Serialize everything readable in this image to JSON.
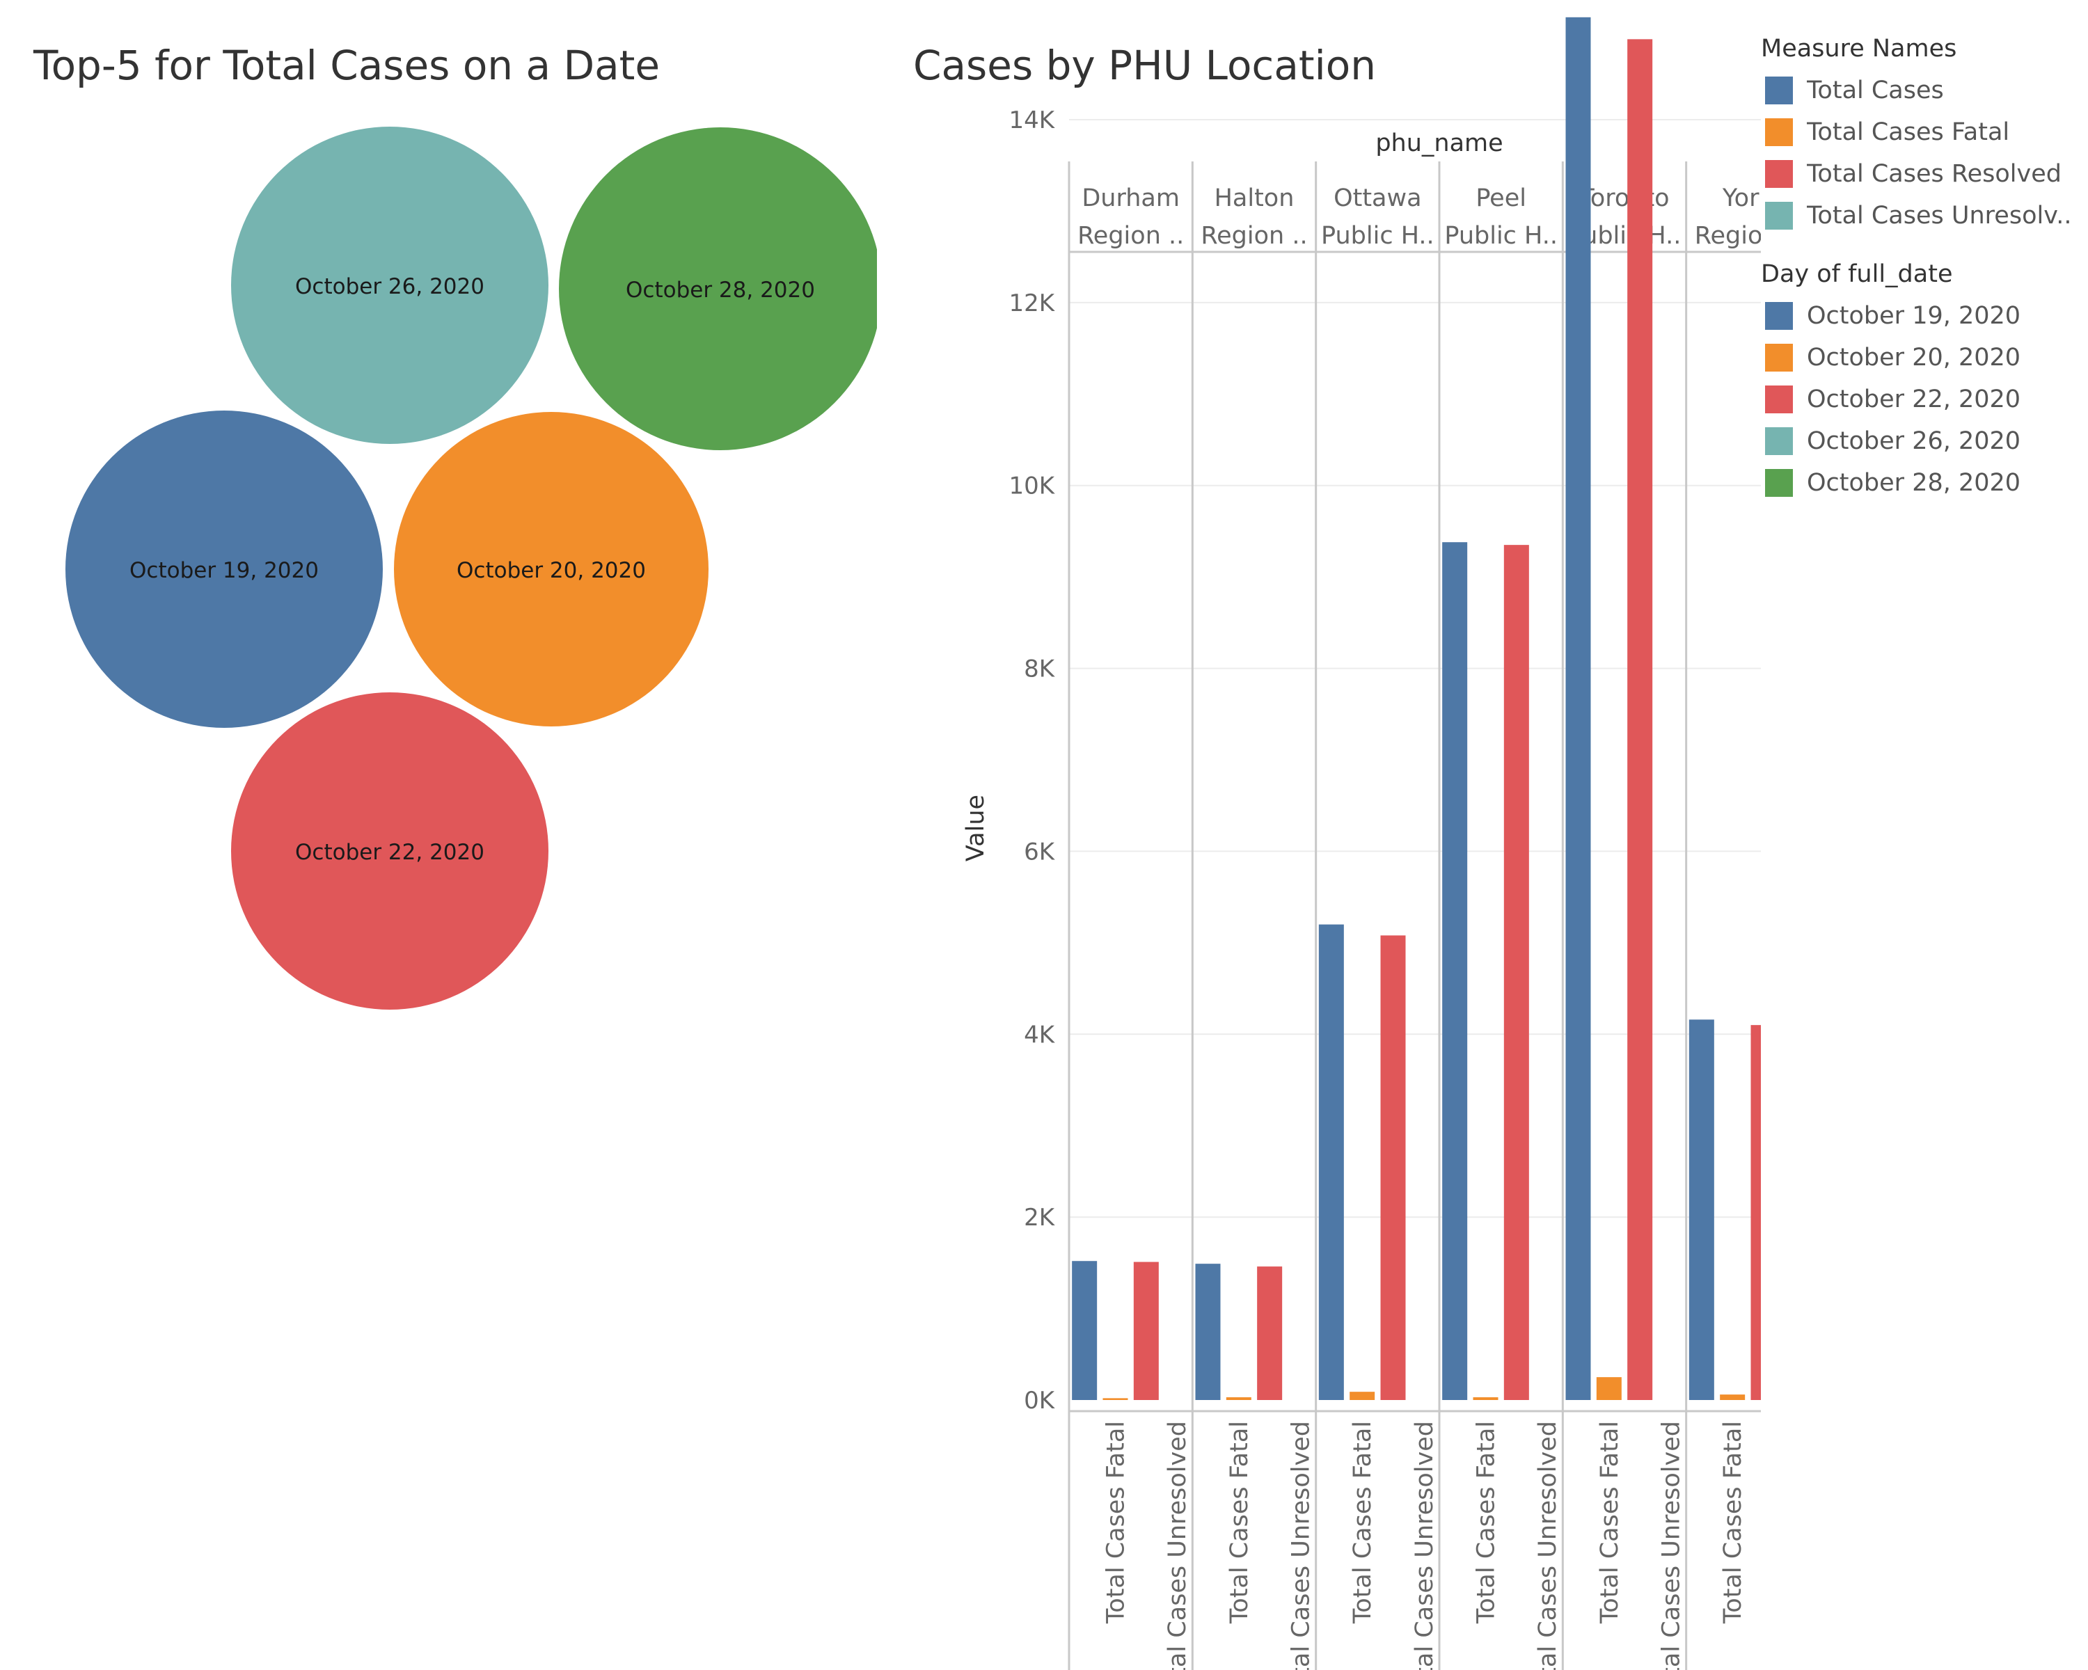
{
  "chart_data": [
    {
      "type": "bubble",
      "title": "Top-5 for Total Cases on a Date",
      "bubbles": [
        {
          "label": "October 26, 2020",
          "color": "#76b4b0"
        },
        {
          "label": "October 28, 2020",
          "color": "#59a14f"
        },
        {
          "label": "October 19, 2020",
          "color": "#4e78a6"
        },
        {
          "label": "October 20, 2020",
          "color": "#f28e2b"
        },
        {
          "label": "October 22, 2020",
          "color": "#e05759"
        }
      ]
    },
    {
      "type": "bar",
      "title": "Cases by PHU Location",
      "column_header": "phu_name",
      "ylabel": "Value",
      "ylim": [
        0,
        16000
      ],
      "yticks": [
        0,
        2000,
        4000,
        6000,
        8000,
        10000,
        12000,
        14000
      ],
      "ytick_labels": [
        "0K",
        "2K",
        "4K",
        "6K",
        "8K",
        "10K",
        "12K",
        "14K"
      ],
      "groups": [
        {
          "label_line1": "Durham",
          "label_line2": "Region .."
        },
        {
          "label_line1": "Halton",
          "label_line2": "Region .."
        },
        {
          "label_line1": "Ottawa",
          "label_line2": "Public H.."
        },
        {
          "label_line1": "Peel",
          "label_line2": "Public H.."
        },
        {
          "label_line1": "Toronto",
          "label_line2": "Public H.."
        },
        {
          "label_line1": "York",
          "label_line2": "Region .."
        }
      ],
      "x_tick_labels": [
        "Total Cases Fatal",
        "Total Cases Unresolved"
      ],
      "series": [
        {
          "name": "Total Cases",
          "color": "#4e78a6",
          "values": [
            1520,
            1490,
            5200,
            9380,
            15120,
            4160
          ]
        },
        {
          "name": "Total Cases Fatal",
          "color": "#f28e2b",
          "values": [
            20,
            30,
            90,
            30,
            250,
            60
          ]
        },
        {
          "name": "Total Cases Resolved",
          "color": "#e05759",
          "values": [
            1510,
            1460,
            5080,
            9350,
            14880,
            4100
          ]
        },
        {
          "name": "Total Cases Unresolved",
          "color": "#76b4b0",
          "values": [
            0,
            0,
            0,
            0,
            0,
            0
          ]
        }
      ]
    }
  ],
  "legends": {
    "measure_names": {
      "title": "Measure Names",
      "items": [
        {
          "label": "Total Cases",
          "color": "#4e78a6"
        },
        {
          "label": "Total Cases Fatal",
          "color": "#f28e2b"
        },
        {
          "label": "Total Cases Resolved",
          "color": "#e05759"
        },
        {
          "label": "Total Cases Unresolv..",
          "color": "#76b4b0"
        }
      ]
    },
    "day_of_full_date": {
      "title": "Day of full_date",
      "items": [
        {
          "label": "October 19, 2020",
          "color": "#4e78a6"
        },
        {
          "label": "October 20, 2020",
          "color": "#f28e2b"
        },
        {
          "label": "October 22, 2020",
          "color": "#e05759"
        },
        {
          "label": "October 26, 2020",
          "color": "#76b4b0"
        },
        {
          "label": "October 28, 2020",
          "color": "#59a14f"
        }
      ]
    }
  }
}
